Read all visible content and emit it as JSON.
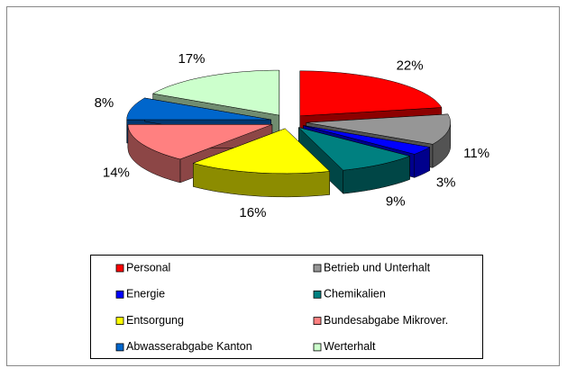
{
  "chart_data": {
    "type": "pie",
    "categories": [
      "Personal",
      "Betrieb und Unterhalt",
      "Energie",
      "Chemikalien",
      "Entsorgung",
      "Bundesabgabe Mikrover.",
      "Abwasserabgabe Kanton",
      "Werterhalt"
    ],
    "values": [
      22,
      11,
      3,
      9,
      16,
      14,
      8,
      17
    ],
    "value_labels": [
      "22%",
      "11%",
      "3%",
      "9%",
      "16%",
      "14%",
      "8%",
      "17%"
    ],
    "colors": [
      "#ff0000",
      "#969696",
      "#0000ff",
      "#008080",
      "#ffff00",
      "#ff8080",
      "#0066cc",
      "#ccffcc"
    ]
  }
}
